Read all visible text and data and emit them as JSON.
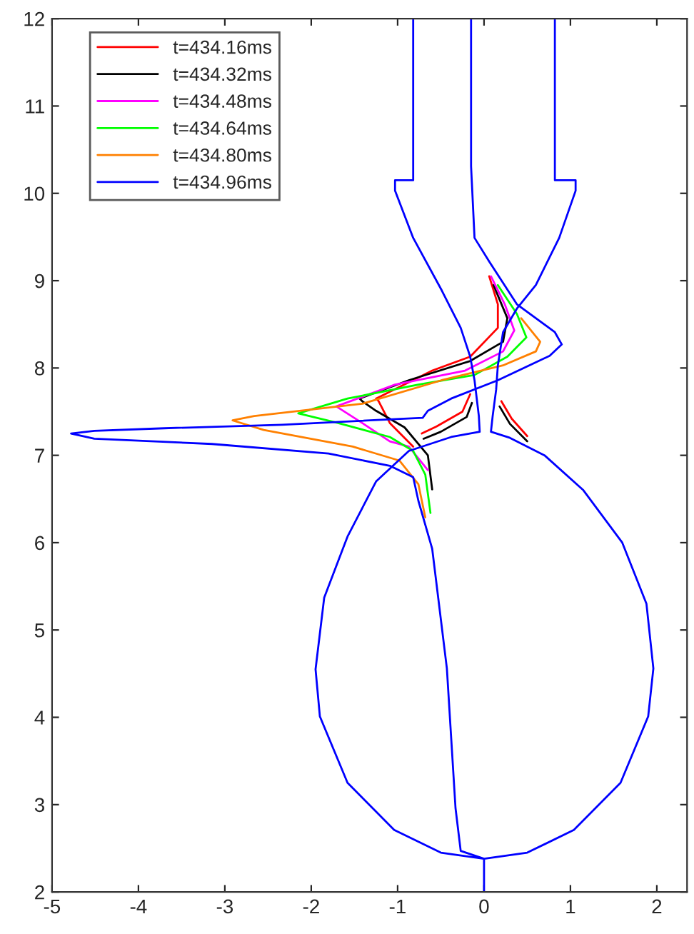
{
  "chart_data": {
    "type": "line",
    "xlim": [
      -5,
      2.35
    ],
    "ylim": [
      2,
      12
    ],
    "xticks": [
      -5,
      -4,
      -3,
      -2,
      -1,
      0,
      1,
      2
    ],
    "yticks": [
      2,
      3,
      4,
      5,
      6,
      7,
      8,
      9,
      10,
      11,
      12
    ],
    "grid": false,
    "legend": "top left",
    "line_style": "solid",
    "marker": "none",
    "series": [
      {
        "name": "t=434.16ms",
        "color": "#ff0000",
        "x": [
          -0.16,
          -0.25,
          -0.55,
          -0.72,
          null,
          0.5,
          0.32,
          0.2,
          null,
          0.06,
          0.16,
          0.16,
          -0.16,
          -0.6,
          -1.25,
          -1.22,
          -1.09,
          -0.82
        ],
        "values": [
          7.7,
          7.5,
          7.33,
          7.25,
          null,
          7.22,
          7.42,
          7.62,
          null,
          9.05,
          8.73,
          8.46,
          8.13,
          7.97,
          7.65,
          7.62,
          7.37,
          7.1
        ]
      },
      {
        "name": "t=434.32ms",
        "color": "#000000",
        "x": [
          -0.14,
          -0.2,
          -0.5,
          -0.7,
          null,
          0.5,
          0.3,
          0.18,
          null,
          0.11,
          0.27,
          0.22,
          -0.16,
          -0.87,
          -1.44,
          -1.41,
          -1.25,
          -0.92,
          -0.65,
          -0.6
        ],
        "values": [
          7.6,
          7.44,
          7.27,
          7.19,
          null,
          7.16,
          7.36,
          7.56,
          null,
          8.95,
          8.57,
          8.3,
          8.08,
          7.86,
          7.65,
          7.62,
          7.51,
          7.32,
          7.0,
          6.61
        ]
      },
      {
        "name": "t=434.48ms",
        "color": "#ff00ff",
        "x": [
          0.08,
          0.24,
          0.35,
          0.22,
          -0.22,
          -1.03,
          -1.71,
          -1.41,
          -1.09,
          -0.87,
          -0.65
        ],
        "values": [
          9.05,
          8.73,
          8.43,
          8.19,
          7.97,
          7.81,
          7.56,
          7.37,
          7.16,
          7.1,
          6.83
        ]
      },
      {
        "name": "t=434.64ms",
        "color": "#00ff00",
        "x": [
          0.16,
          0.38,
          0.49,
          0.27,
          -0.11,
          -0.76,
          -1.58,
          -2.15,
          -1.69,
          -1.09,
          -0.82,
          -0.68,
          -0.62
        ],
        "values": [
          8.95,
          8.62,
          8.35,
          8.13,
          7.92,
          7.81,
          7.65,
          7.48,
          7.37,
          7.21,
          7.05,
          6.78,
          6.34
        ]
      },
      {
        "name": "t=434.80ms",
        "color": "#ff8000",
        "x": [
          0.43,
          0.65,
          0.6,
          0.22,
          -0.49,
          -1.41,
          -2.66,
          -2.91,
          -2.55,
          -1.52,
          -0.98,
          -0.76,
          -0.68
        ],
        "values": [
          8.57,
          8.3,
          8.19,
          8.03,
          7.86,
          7.59,
          7.45,
          7.4,
          7.29,
          7.1,
          6.94,
          6.67,
          6.29
        ]
      },
      {
        "name": "t=434.96ms",
        "color": "#0000ff",
        "x": [
          -0.82,
          -0.82,
          -1.03,
          -1.03,
          -0.82,
          -0.49,
          -0.27,
          -0.16,
          -0.11,
          -0.06,
          -0.05,
          -0.38,
          -0.87,
          -1.25,
          -1.58,
          -1.85,
          -1.95,
          -1.9,
          -1.58,
          -1.04,
          -0.5,
          0,
          0.5,
          1.04,
          1.58,
          1.9,
          1.96,
          1.88,
          1.6,
          1.15,
          0.7,
          0.3,
          0.08,
          0.1,
          0.14,
          0.16,
          0.22,
          0.38,
          0.6,
          0.87,
          1.06,
          1.06,
          0.82,
          0.82,
          null,
          -0.15,
          -0.15,
          -0.11,
          0.06,
          0.38,
          0.82,
          0.9,
          0.76,
          0.16,
          -0.38,
          -0.65,
          -0.71,
          -2.34,
          -3.7,
          -4.51,
          -4.78,
          -4.51,
          -3.15,
          -1.8,
          -1.09,
          -0.82,
          -0.76,
          -0.6,
          -0.43,
          -0.33,
          -0.27,
          0,
          null,
          0,
          0
        ],
        "values": [
          12,
          10.15,
          10.15,
          10.03,
          9.49,
          8.89,
          8.46,
          8.13,
          7.86,
          7.45,
          7.27,
          7.21,
          7.05,
          6.7,
          6.07,
          5.37,
          4.55,
          4.01,
          3.25,
          2.71,
          2.45,
          2.38,
          2.45,
          2.71,
          3.25,
          4.01,
          4.56,
          5.3,
          6.0,
          6.6,
          7.0,
          7.2,
          7.27,
          7.45,
          7.75,
          8.03,
          8.41,
          8.68,
          8.95,
          9.49,
          10.03,
          10.15,
          10.15,
          12,
          null,
          12,
          10.31,
          9.49,
          9.22,
          8.73,
          8.41,
          8.27,
          8.14,
          7.86,
          7.65,
          7.51,
          7.43,
          7.35,
          7.31,
          7.28,
          7.25,
          7.19,
          7.13,
          7.02,
          6.88,
          6.75,
          6.48,
          5.93,
          4.56,
          2.96,
          2.47,
          2.38,
          null,
          2.38,
          2.0
        ]
      }
    ]
  }
}
